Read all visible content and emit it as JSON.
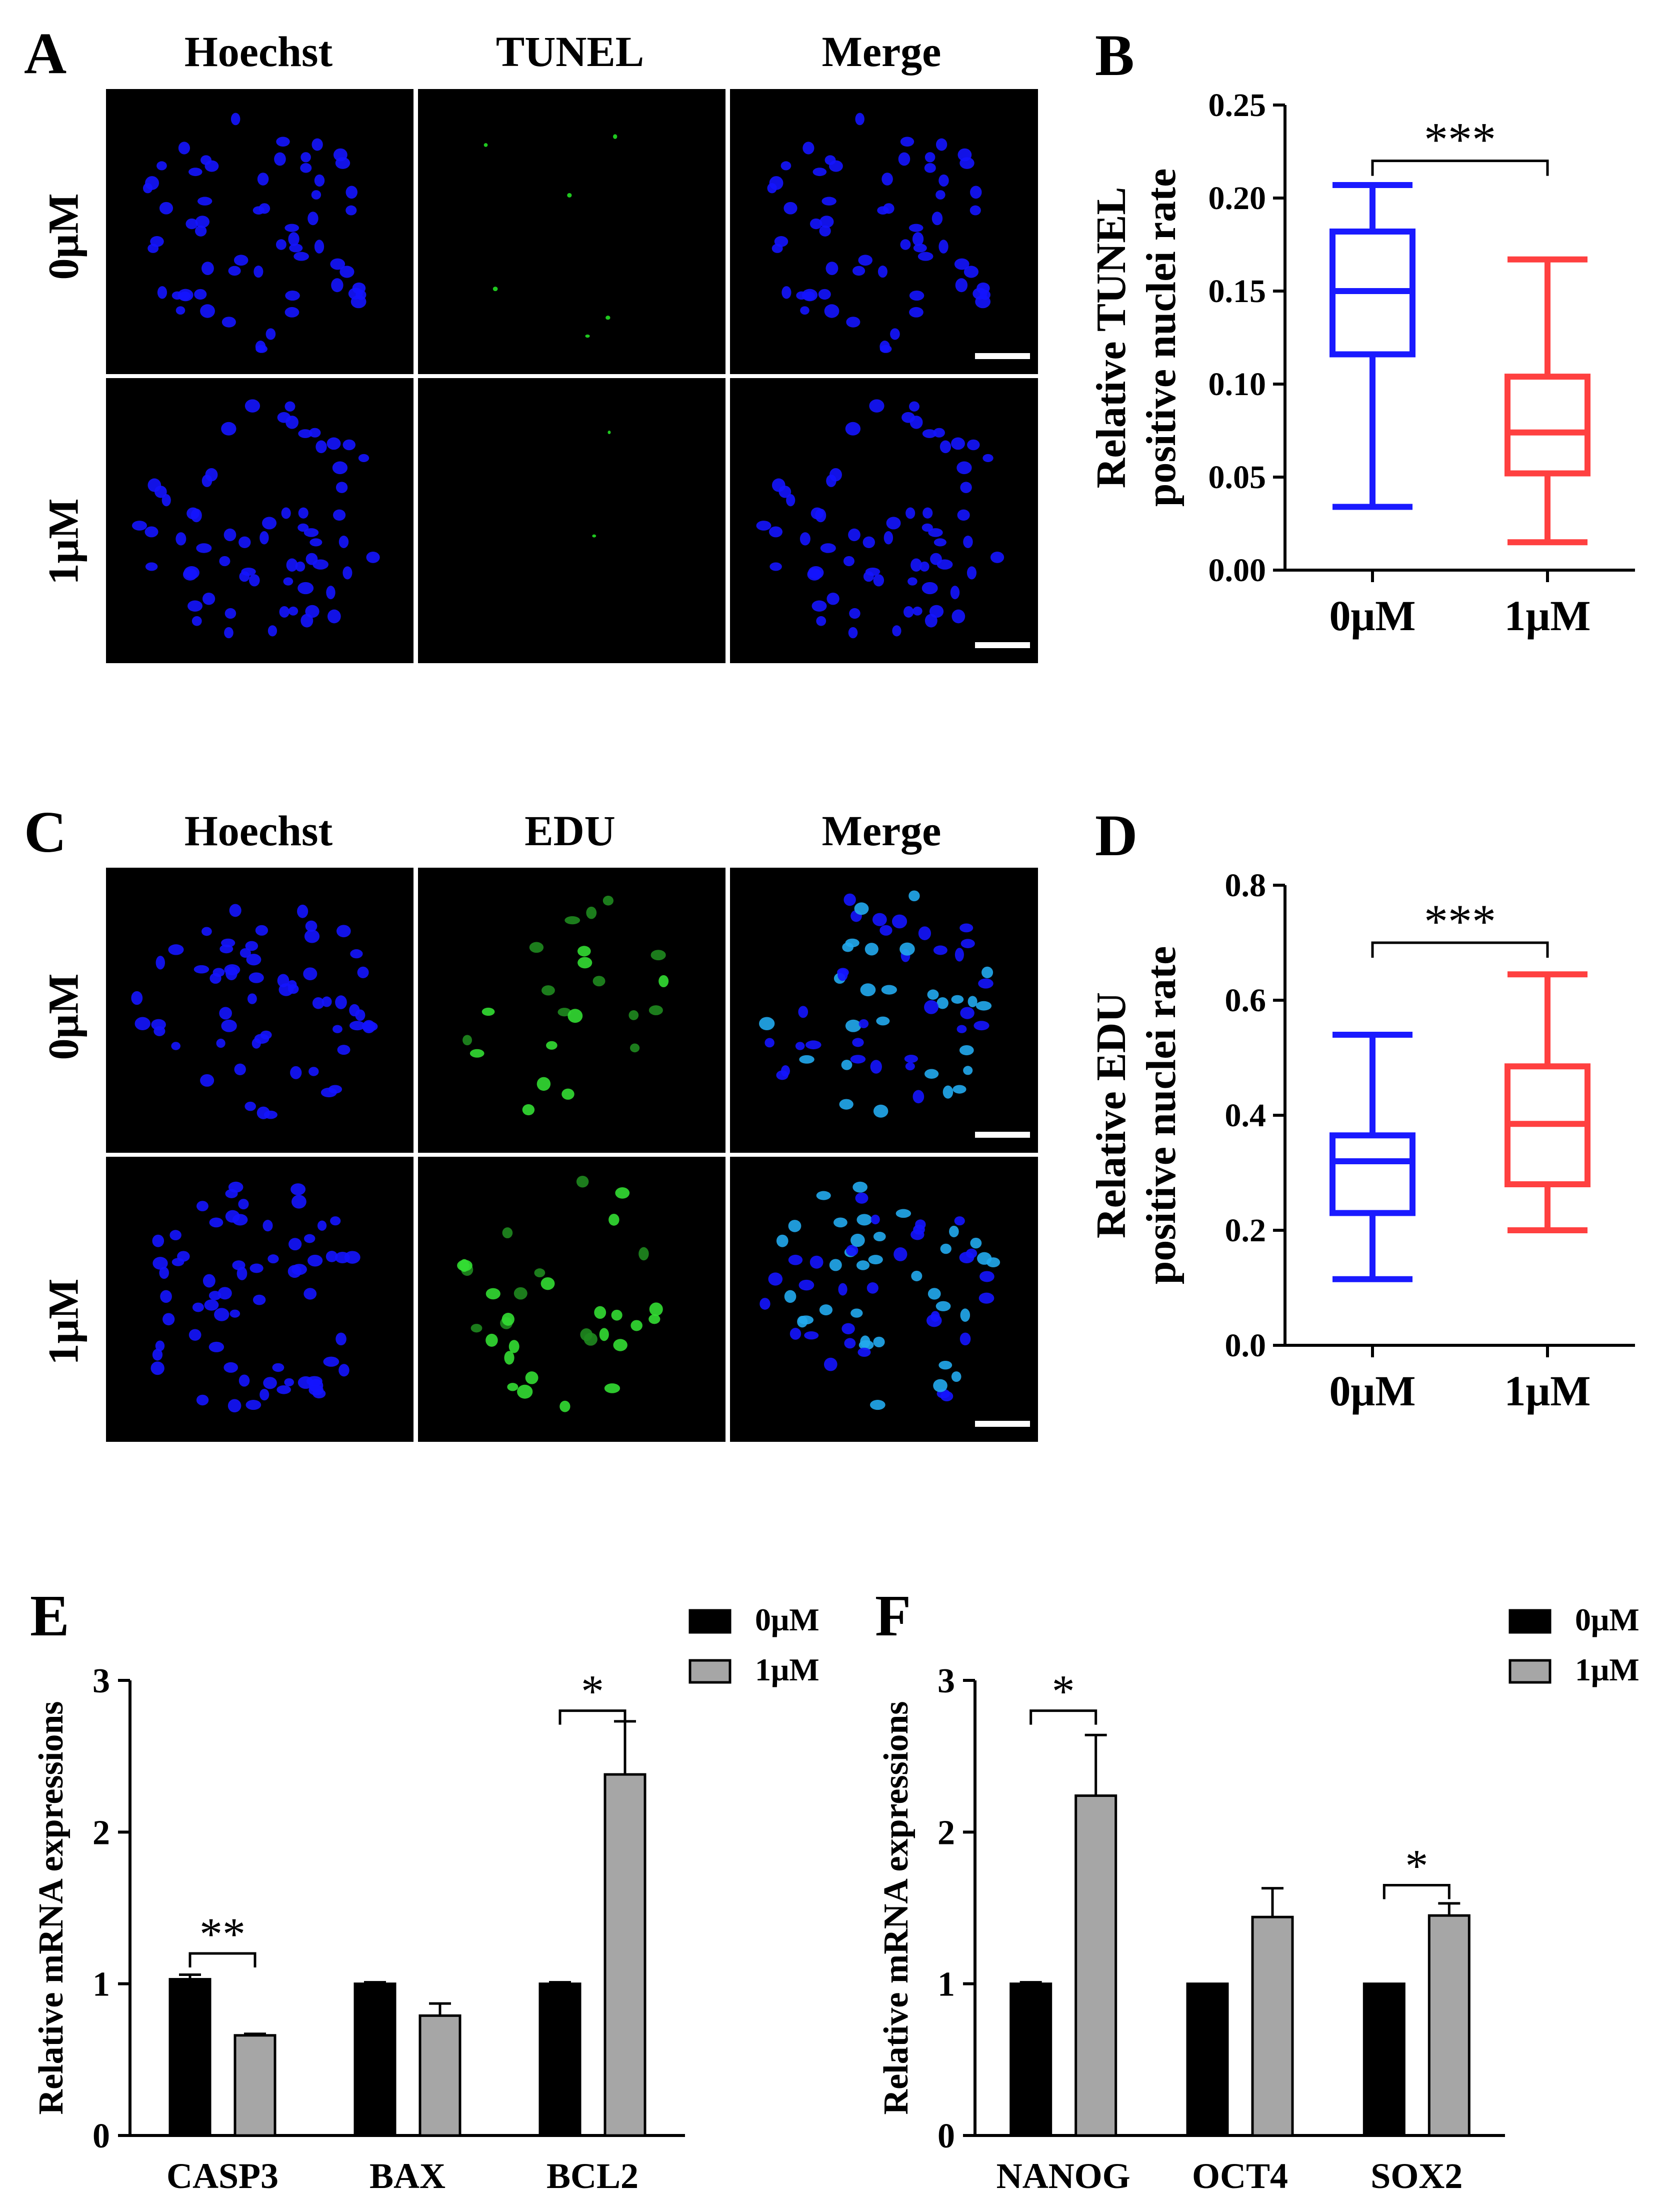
{
  "panels": {
    "A": {
      "letter": "A",
      "columns": [
        "Hoechst",
        "TUNEL",
        "Merge"
      ],
      "rows": [
        "0μM",
        "1μM"
      ]
    },
    "C": {
      "letter": "C",
      "columns": [
        "Hoechst",
        "EDU",
        "Merge"
      ],
      "rows": [
        "0μM",
        "1μM"
      ]
    }
  },
  "colors": {
    "blue_group": "#1a1aff",
    "red_group": "#ff4040",
    "nuclei_blue": "#1414ff",
    "nuclei_green": "#22dd22",
    "bar_black": "#000000",
    "bar_gray": "#a6a6a6"
  },
  "chart_data": [
    {
      "id": "B",
      "letter": "B",
      "type": "box",
      "ylabel_lines": [
        "Relative TUNEL",
        "positive nuclei rate"
      ],
      "categories": [
        "0μM",
        "1μM"
      ],
      "ylim": [
        0,
        0.25
      ],
      "yticks": [
        "0.00",
        "0.05",
        "0.10",
        "0.15",
        "0.20",
        "0.25"
      ],
      "ytick_values": [
        0,
        0.05,
        0.1,
        0.15,
        0.2,
        0.25
      ],
      "boxes": [
        {
          "category": "0μM",
          "min": 0.034,
          "q1": 0.116,
          "median": 0.15,
          "q3": 0.182,
          "max": 0.207,
          "color": "#1a1aff"
        },
        {
          "category": "1μM",
          "min": 0.015,
          "q1": 0.052,
          "median": 0.074,
          "q3": 0.104,
          "max": 0.167,
          "color": "#ff4040"
        }
      ],
      "significance": [
        {
          "from": 0,
          "to": 1,
          "label": "***",
          "y": 0.22
        }
      ]
    },
    {
      "id": "D",
      "letter": "D",
      "type": "box",
      "ylabel_lines": [
        "Relative EDU",
        "positive nuclei rate"
      ],
      "categories": [
        "0μM",
        "1μM"
      ],
      "ylim": [
        0,
        0.8
      ],
      "yticks": [
        "0.0",
        "0.2",
        "0.4",
        "0.6",
        "0.8"
      ],
      "ytick_values": [
        0,
        0.2,
        0.4,
        0.6,
        0.8
      ],
      "boxes": [
        {
          "category": "0μM",
          "min": 0.115,
          "q1": 0.23,
          "median": 0.32,
          "q3": 0.365,
          "max": 0.54,
          "color": "#1a1aff"
        },
        {
          "category": "1μM",
          "min": 0.2,
          "q1": 0.28,
          "median": 0.385,
          "q3": 0.485,
          "max": 0.645,
          "color": "#ff4040"
        }
      ],
      "significance": [
        {
          "from": 0,
          "to": 1,
          "label": "***",
          "y": 0.7
        }
      ]
    },
    {
      "id": "E",
      "letter": "E",
      "type": "bar",
      "ylabel": "Relative mRNA expressions",
      "categories": [
        "CASP3",
        "BAX",
        "BCL2"
      ],
      "ylim": [
        0,
        3
      ],
      "yticks": [
        "0",
        "1",
        "2",
        "3"
      ],
      "ytick_values": [
        0,
        1,
        2,
        3
      ],
      "series": [
        {
          "name": "0μM",
          "values": [
            1.03,
            1.0,
            1.0
          ],
          "errors": [
            0.03,
            0.01,
            0.01
          ],
          "color": "#000000"
        },
        {
          "name": "1μM",
          "values": [
            0.66,
            0.79,
            2.38
          ],
          "errors": [
            0.01,
            0.08,
            0.35
          ],
          "color": "#a6a6a6"
        }
      ],
      "legend": "top-right",
      "significance": [
        {
          "category": 0,
          "label": "**",
          "y": 1.2
        },
        {
          "category": 2,
          "label": "*",
          "y": 2.8
        }
      ]
    },
    {
      "id": "F",
      "letter": "F",
      "type": "bar",
      "ylabel": "Relative mRNA expressions",
      "categories": [
        "NANOG",
        "OCT4",
        "SOX2"
      ],
      "ylim": [
        0,
        3
      ],
      "yticks": [
        "0",
        "1",
        "2",
        "3"
      ],
      "ytick_values": [
        0,
        1,
        2,
        3
      ],
      "series": [
        {
          "name": "0μM",
          "values": [
            1.0,
            1.0,
            1.0
          ],
          "errors": [
            0.01,
            0.0,
            0.0
          ],
          "color": "#000000"
        },
        {
          "name": "1μM",
          "values": [
            2.24,
            1.44,
            1.45
          ],
          "errors": [
            0.4,
            0.19,
            0.08
          ],
          "color": "#a6a6a6"
        }
      ],
      "legend": "top-right",
      "significance": [
        {
          "category": 0,
          "label": "*",
          "y": 2.8
        },
        {
          "category": 2,
          "label": "*",
          "y": 1.65
        }
      ]
    }
  ]
}
